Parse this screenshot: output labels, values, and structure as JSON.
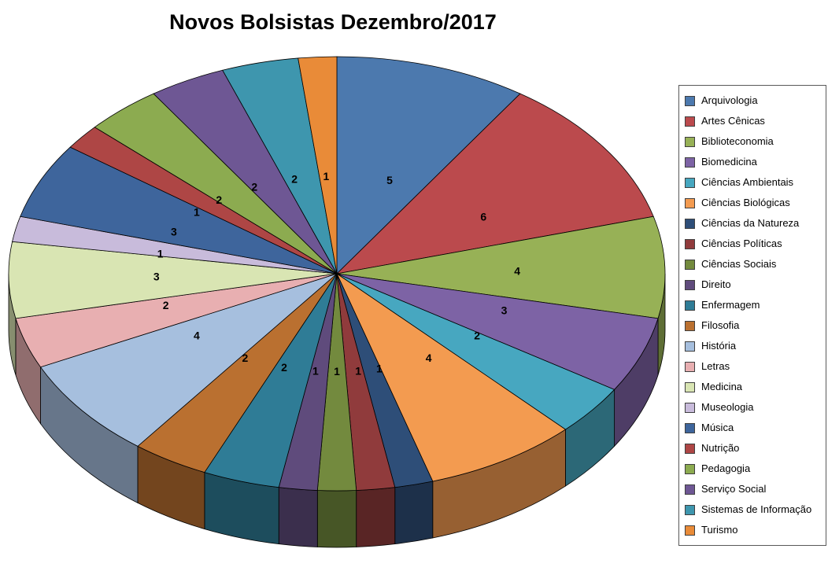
{
  "chart_data": {
    "type": "pie",
    "title": "Novos Bolsistas Dezembro/2017",
    "effect": "3d",
    "direction": "clockwise",
    "start_angle_deg": -90,
    "legend_position": "right",
    "labels_show": "value",
    "total": 53,
    "categories": [
      "Arquivologia",
      "Artes Cênicas",
      "Biblioteconomia",
      "Biomedicina",
      "Ciências Ambientais",
      "Ciências Biológicas",
      "Ciências da Natureza",
      "Ciências Políticas",
      "Ciências Sociais",
      "Direito",
      "Enfermagem",
      "Filosofia",
      "História",
      "Letras",
      "Medicina",
      "Museologia",
      "Música",
      "Nutrição",
      "Pedagogia",
      "Serviço Social",
      "Sistemas de Informação",
      "Turismo"
    ],
    "values": [
      5,
      6,
      4,
      3,
      2,
      4,
      1,
      1,
      1,
      1,
      2,
      2,
      4,
      2,
      3,
      1,
      3,
      1,
      2,
      2,
      2,
      1
    ],
    "colors": [
      "#4C79AE",
      "#BB4A4D",
      "#97B156",
      "#7D63A5",
      "#47A7C0",
      "#F39B50",
      "#2E4E78",
      "#903B3C",
      "#738A3E",
      "#5F4B7C",
      "#2F7C96",
      "#BA7030",
      "#A6BFDE",
      "#E8AFB1",
      "#D9E5B3",
      "#C8BBDB",
      "#3E659C",
      "#AE4645",
      "#8CAB50",
      "#6E5794",
      "#3E96AE",
      "#E98B38"
    ]
  }
}
